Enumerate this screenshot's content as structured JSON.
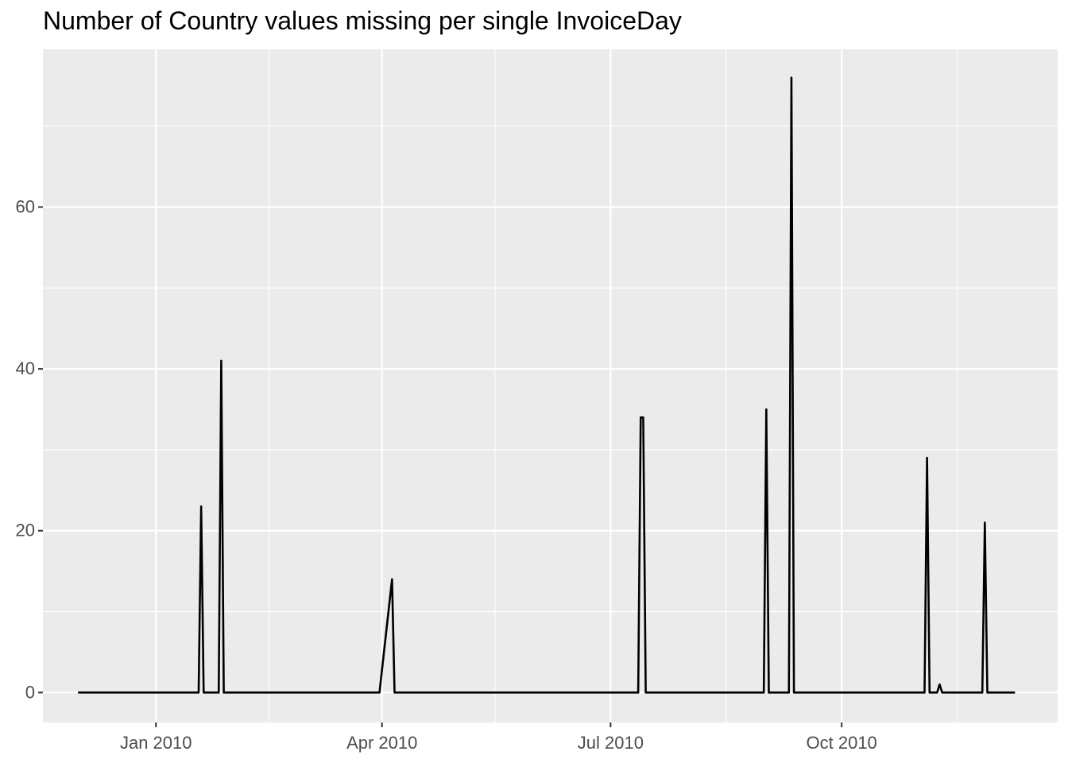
{
  "chart_data": {
    "type": "line",
    "title": "Number of Country values missing per single InvoiceDay",
    "xlabel": "",
    "ylabel": "",
    "x_axis_type": "date",
    "xlim": [
      "2009-11-17",
      "2010-12-26"
    ],
    "ylim": [
      -3.7,
      79.5
    ],
    "x_ticks": [
      {
        "date": "2010-01-01",
        "label": "Jan 2010"
      },
      {
        "date": "2010-04-01",
        "label": "Apr 2010"
      },
      {
        "date": "2010-07-01",
        "label": "Jul 2010"
      },
      {
        "date": "2010-10-01",
        "label": "Oct 2010"
      }
    ],
    "x_minor_gridlines": [
      "2009-11-16",
      "2010-02-15",
      "2010-05-16",
      "2010-08-16",
      "2010-11-16"
    ],
    "y_ticks": [
      0,
      20,
      40,
      60
    ],
    "y_minor_gridlines": [
      10,
      30,
      50,
      70
    ],
    "grid": true,
    "background": "#ebebeb",
    "line_color": "#000000",
    "series": [
      {
        "x": [
          "2009-12-01",
          "2010-01-18",
          "2010-01-19",
          "2010-01-20",
          "2010-01-26",
          "2010-01-27",
          "2010-01-28",
          "2010-03-31",
          "2010-04-05",
          "2010-04-06",
          "2010-07-12",
          "2010-07-13",
          "2010-07-14",
          "2010-07-15",
          "2010-08-31",
          "2010-09-01",
          "2010-09-02",
          "2010-09-10",
          "2010-09-11",
          "2010-09-12",
          "2010-11-03",
          "2010-11-04",
          "2010-11-05",
          "2010-11-08",
          "2010-11-09",
          "2010-11-10",
          "2010-11-26",
          "2010-11-27",
          "2010-11-28",
          "2010-12-09"
        ],
        "y": [
          0,
          0,
          23,
          0,
          0,
          41,
          0,
          0,
          14,
          0,
          0,
          34,
          34,
          0,
          0,
          35,
          0,
          0,
          76,
          0,
          0,
          29,
          0,
          0,
          1,
          0,
          0,
          21,
          0,
          0
        ]
      }
    ]
  }
}
